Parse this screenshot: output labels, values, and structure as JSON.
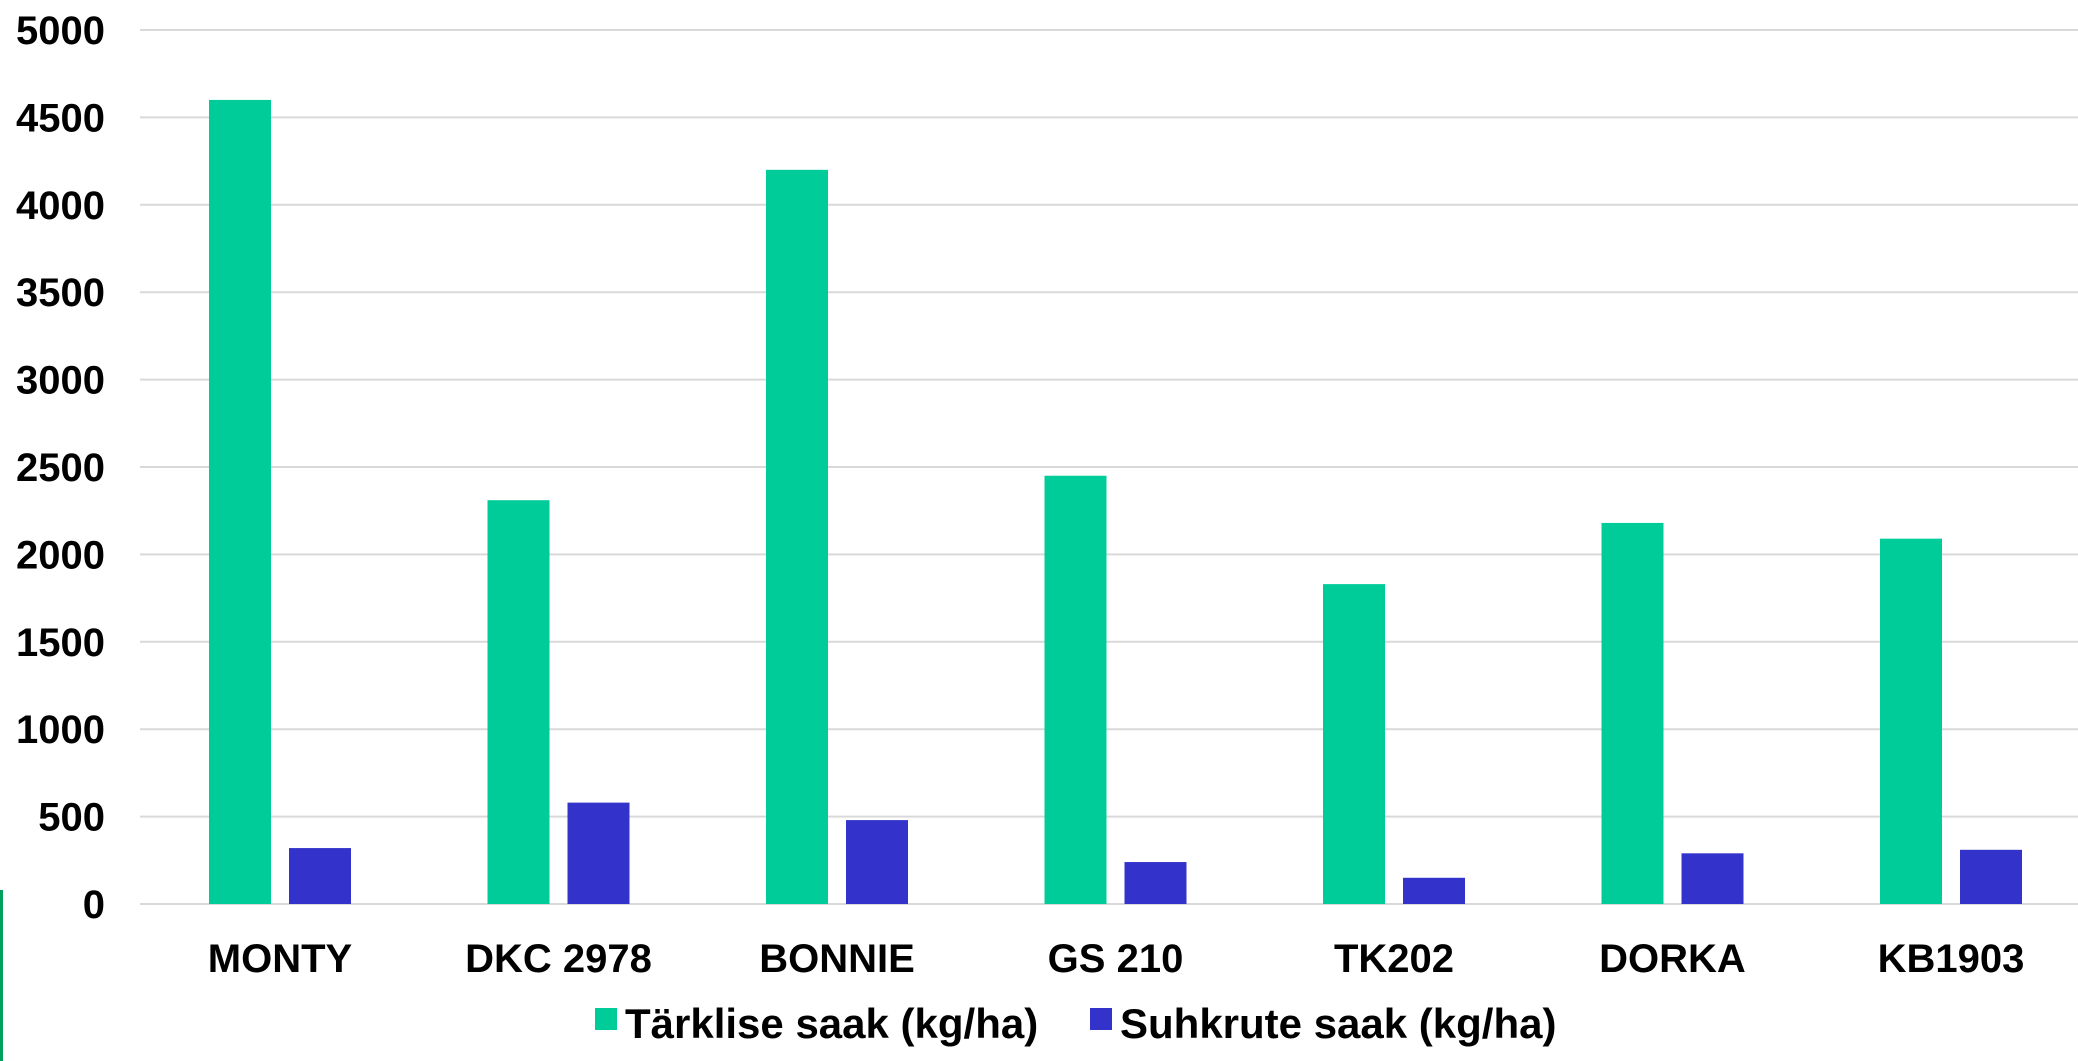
{
  "chart_data": {
    "type": "bar",
    "title": "",
    "xlabel": "",
    "ylabel": "",
    "categories": [
      "MONTY",
      "DKC 2978",
      "BONNIE",
      "GS 210",
      "TK202",
      "DORKA",
      "KB1903"
    ],
    "series": [
      {
        "name": "Tärklise saak (kg/ha)",
        "color": "#00cc99",
        "values": [
          4600,
          2310,
          4200,
          2450,
          1830,
          2180,
          2090
        ]
      },
      {
        "name": "Suhkrute saak (kg/ha)",
        "color": "#3333cc",
        "values": [
          320,
          580,
          480,
          240,
          150,
          290,
          310
        ]
      }
    ],
    "ylim": [
      0,
      5000
    ],
    "yticks": [
      0,
      500,
      1000,
      1500,
      2000,
      2500,
      3000,
      3500,
      4000,
      4500,
      5000
    ],
    "grid": true,
    "gridline_color": "#d9d9d9",
    "legend_position": "bottom"
  }
}
